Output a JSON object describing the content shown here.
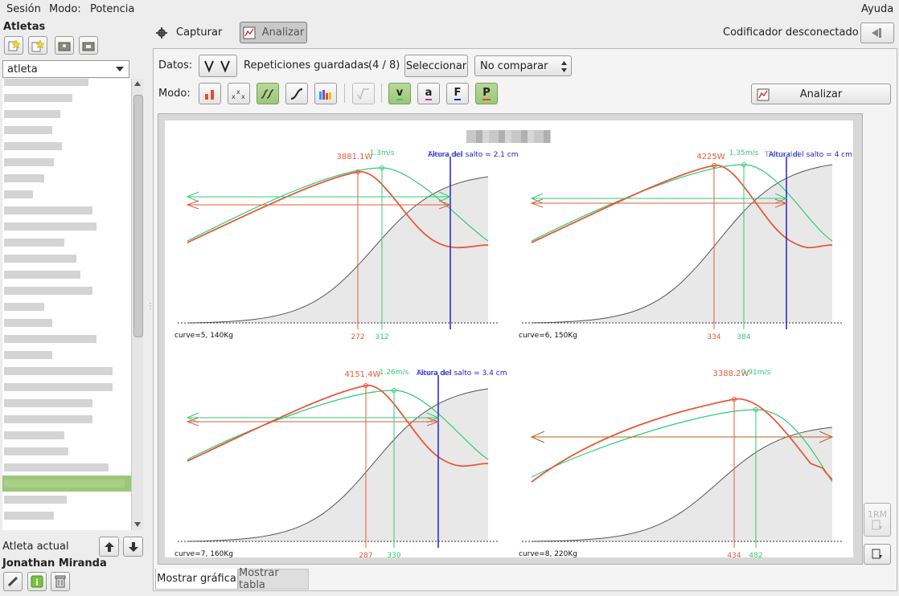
{
  "menu": {
    "session": "Sesión",
    "mode": "Modo:",
    "mode_value": "Potencia",
    "help": "Ayuda"
  },
  "sidebar": {
    "title": "Atletas",
    "combo_value": "atleta",
    "current_label": "Atleta actual",
    "current_name": "Jonathan Miranda",
    "selected_row": 25
  },
  "toolbar": {
    "capture": "Capturar",
    "analyze": "Analizar",
    "encoder_status": "Codificador desconectado"
  },
  "options": {
    "data_label": "Datos:",
    "saved_reps": "Repeticiones guardadas",
    "count": "(4 / 8)",
    "select": "Seleccionar",
    "compare_value": "No comparar",
    "mode_label": "Modo:",
    "analyze_button": "Analizar",
    "v": "v",
    "a": "a",
    "f": "F",
    "p": "P"
  },
  "side_buttons": {
    "rm": "1RM"
  },
  "tabs": {
    "graph": "Mostrar gráfica",
    "table": "Mostrar tabla"
  },
  "colors": {
    "power": "#e8583a",
    "speed": "#2ecc78",
    "jump": "#2222cc",
    "force": "#b5651d",
    "accent_green": "#9cc778"
  },
  "chart_data": {
    "type": "line",
    "panels": [
      {
        "caption": "curve=5, 140Kg",
        "power_peak_label": "3881.1W",
        "speed_peak_label": "1.3m/s",
        "jump_label": "Altura del salto = 2.1 cm",
        "jump_label_alt": "Tierra del",
        "power_peak_x": 272,
        "speed_peak_x": 312
      },
      {
        "caption": "curve=6, 150Kg",
        "power_peak_label": "4225W",
        "speed_peak_label": "1.35m/s",
        "jump_label": "Altura del salto = 4 cm",
        "jump_label_alt": "Tierra del",
        "power_peak_x": 334,
        "speed_peak_x": 384
      },
      {
        "caption": "curve=7, 160Kg",
        "power_peak_label": "4151.4W",
        "speed_peak_label": "1.26m/s",
        "jump_label": "Altura del salto = 3.4 cm",
        "jump_label_alt": "Tierra del",
        "power_peak_x": 287,
        "speed_peak_x": 330
      },
      {
        "caption": "curve=8, 220Kg",
        "power_peak_label": "3388.2W",
        "speed_peak_label": "0.91m/s",
        "jump_label": "",
        "jump_label_alt": "",
        "power_peak_x": 434,
        "speed_peak_x": 482
      }
    ]
  }
}
